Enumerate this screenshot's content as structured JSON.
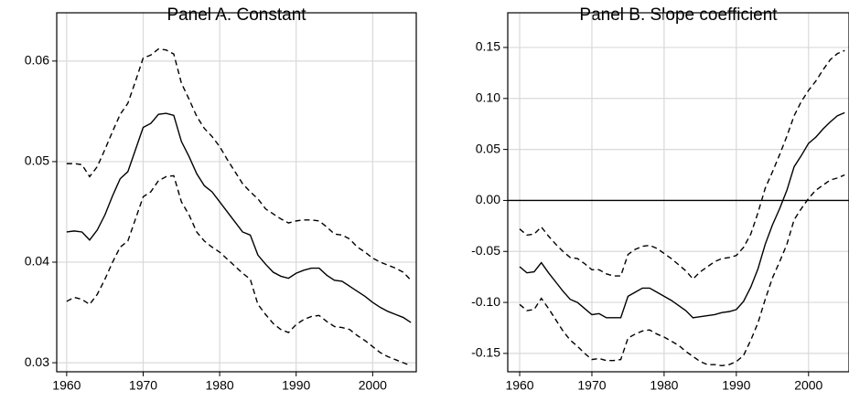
{
  "chart_data": [
    {
      "type": "line",
      "title": "Panel A. Constant",
      "x": [
        1960,
        1961,
        1962,
        1963,
        1964,
        1965,
        1966,
        1967,
        1968,
        1969,
        1970,
        1971,
        1972,
        1973,
        1974,
        1975,
        1976,
        1977,
        1978,
        1979,
        1980,
        1981,
        1982,
        1983,
        1984,
        1985,
        1986,
        1987,
        1988,
        1989,
        1990,
        1991,
        1992,
        1993,
        1994,
        1995,
        1996,
        1997,
        1998,
        1999,
        2000,
        2001,
        2002,
        2003,
        2004,
        2005
      ],
      "series": [
        {
          "color": "#000000",
          "style": "dashed",
          "values": [
            0.0498,
            0.0498,
            0.0497,
            0.0485,
            0.0495,
            0.0512,
            0.053,
            0.0547,
            0.0558,
            0.058,
            0.0603,
            0.0606,
            0.0612,
            0.0611,
            0.0607,
            0.0578,
            0.0562,
            0.0545,
            0.0533,
            0.0525,
            0.0515,
            0.0502,
            0.049,
            0.0478,
            0.047,
            0.0463,
            0.0453,
            0.0448,
            0.0443,
            0.0439,
            0.0441,
            0.0442,
            0.0442,
            0.0441,
            0.0435,
            0.0428,
            0.0427,
            0.0423,
            0.0415,
            0.041,
            0.0404,
            0.04,
            0.0397,
            0.0394,
            0.039,
            0.0382
          ]
        },
        {
          "color": "#000000",
          "style": "solid",
          "values": [
            0.043,
            0.0431,
            0.043,
            0.0422,
            0.0432,
            0.0447,
            0.0466,
            0.0483,
            0.049,
            0.0512,
            0.0534,
            0.0538,
            0.0547,
            0.0548,
            0.0546,
            0.052,
            0.0505,
            0.0488,
            0.0476,
            0.047,
            0.046,
            0.045,
            0.044,
            0.043,
            0.0427,
            0.0407,
            0.0398,
            0.039,
            0.0386,
            0.0384,
            0.0389,
            0.0392,
            0.0394,
            0.0394,
            0.0387,
            0.0382,
            0.0381,
            0.0376,
            0.0371,
            0.0366,
            0.036,
            0.0355,
            0.0351,
            0.0348,
            0.0345,
            0.034
          ]
        },
        {
          "color": "#000000",
          "style": "dashed",
          "values": [
            0.0361,
            0.0365,
            0.0363,
            0.0358,
            0.0368,
            0.0383,
            0.04,
            0.0415,
            0.0421,
            0.0443,
            0.0465,
            0.047,
            0.0481,
            0.0485,
            0.0486,
            0.046,
            0.0447,
            0.043,
            0.0421,
            0.0415,
            0.041,
            0.0403,
            0.0396,
            0.0389,
            0.0383,
            0.0358,
            0.0348,
            0.0339,
            0.0333,
            0.033,
            0.0338,
            0.0343,
            0.0346,
            0.0347,
            0.0341,
            0.0336,
            0.0335,
            0.0333,
            0.0327,
            0.0322,
            0.0316,
            0.031,
            0.0306,
            0.0303,
            0.03,
            0.0297
          ]
        }
      ],
      "xlim": [
        1958.7,
        2005.7
      ],
      "xticks": [
        1960,
        1970,
        1980,
        1990,
        2000
      ],
      "ylim": [
        0.0291,
        0.0648
      ],
      "yticks": [
        0.03,
        0.04,
        0.05,
        0.06
      ],
      "grid": true
    },
    {
      "type": "line",
      "title": "Panel B. Slope coefficient",
      "x": [
        1960,
        1961,
        1962,
        1963,
        1964,
        1965,
        1966,
        1967,
        1968,
        1969,
        1970,
        1971,
        1972,
        1973,
        1974,
        1975,
        1976,
        1977,
        1978,
        1979,
        1980,
        1981,
        1982,
        1983,
        1984,
        1985,
        1986,
        1987,
        1988,
        1989,
        1990,
        1991,
        1992,
        1993,
        1994,
        1995,
        1996,
        1997,
        1998,
        1999,
        2000,
        2001,
        2002,
        2003,
        2004,
        2005
      ],
      "series": [
        {
          "color": "#000000",
          "style": "dashed",
          "values": [
            -0.028,
            -0.034,
            -0.033,
            -0.026,
            -0.035,
            -0.043,
            -0.05,
            -0.056,
            -0.057,
            -0.062,
            -0.068,
            -0.068,
            -0.072,
            -0.074,
            -0.074,
            -0.053,
            -0.048,
            -0.045,
            -0.044,
            -0.047,
            -0.052,
            -0.057,
            -0.063,
            -0.069,
            -0.077,
            -0.07,
            -0.065,
            -0.06,
            -0.057,
            -0.056,
            -0.054,
            -0.046,
            -0.033,
            -0.012,
            0.012,
            0.028,
            0.045,
            0.063,
            0.083,
            0.097,
            0.108,
            0.117,
            0.128,
            0.138,
            0.144,
            0.147
          ]
        },
        {
          "color": "#000000",
          "style": "solid",
          "values": [
            -0.065,
            -0.071,
            -0.07,
            -0.061,
            -0.071,
            -0.08,
            -0.089,
            -0.097,
            -0.1,
            -0.106,
            -0.112,
            -0.111,
            -0.115,
            -0.115,
            -0.115,
            -0.094,
            -0.09,
            -0.086,
            -0.086,
            -0.09,
            -0.094,
            -0.098,
            -0.103,
            -0.108,
            -0.115,
            -0.114,
            -0.113,
            -0.112,
            -0.11,
            -0.109,
            -0.107,
            -0.099,
            -0.085,
            -0.067,
            -0.043,
            -0.024,
            -0.008,
            0.01,
            0.033,
            0.044,
            0.056,
            0.062,
            0.07,
            0.077,
            0.083,
            0.086
          ]
        },
        {
          "color": "#000000",
          "style": "dashed",
          "values": [
            -0.102,
            -0.108,
            -0.107,
            -0.096,
            -0.106,
            -0.117,
            -0.128,
            -0.137,
            -0.143,
            -0.15,
            -0.156,
            -0.155,
            -0.157,
            -0.157,
            -0.156,
            -0.135,
            -0.131,
            -0.128,
            -0.127,
            -0.131,
            -0.134,
            -0.138,
            -0.142,
            -0.148,
            -0.153,
            -0.158,
            -0.161,
            -0.161,
            -0.162,
            -0.161,
            -0.158,
            -0.152,
            -0.137,
            -0.12,
            -0.097,
            -0.076,
            -0.06,
            -0.043,
            -0.019,
            -0.008,
            0.002,
            0.01,
            0.015,
            0.02,
            0.022,
            0.025
          ]
        }
      ],
      "xlim": [
        1958.35,
        2005.6
      ],
      "xticks": [
        1960,
        1970,
        1980,
        1990,
        2000
      ],
      "ylim": [
        -0.168,
        0.184
      ],
      "yticks": [
        {
          "value": 0.15,
          "label": "0.15"
        },
        {
          "value": 0.1,
          "label": "0.10"
        },
        0.05,
        {
          "value": 0,
          "label": "0.00"
        },
        -0.05,
        {
          "value": -0.1,
          "label": "-0.10"
        },
        -0.15
      ],
      "hline": 0,
      "grid": true
    }
  ]
}
